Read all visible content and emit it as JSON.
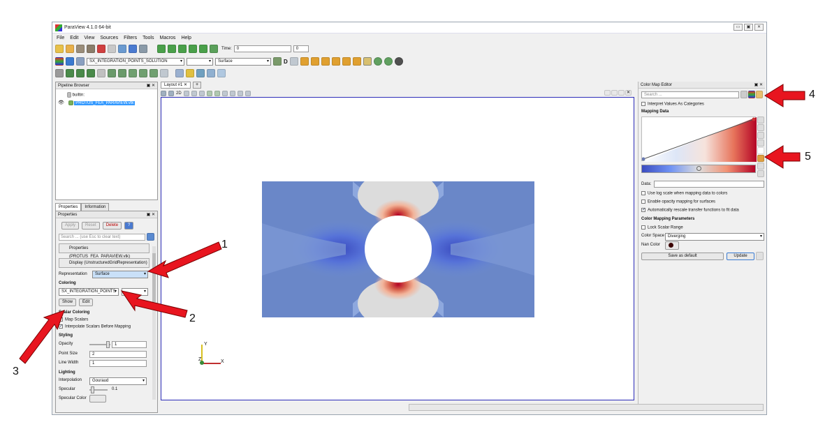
{
  "window": {
    "title": "ParaView 4.1.0 64-bit",
    "controls": [
      "▭",
      "▣",
      "✕"
    ]
  },
  "menu": [
    "File",
    "Edit",
    "View",
    "Sources",
    "Filters",
    "Tools",
    "Macros",
    "Help"
  ],
  "toolbar": {
    "time_label": "Time:",
    "time_value": "0",
    "time_index": "0",
    "array_select": "SX_INTEGRATION_POINTS_SOLUTION",
    "component_select": "",
    "representation_select": "Surface",
    "d_label": "D"
  },
  "pipeline_browser": {
    "title": "Pipeline Browser",
    "items": [
      "builtin:",
      "PROTUS_FEA_PARAVIEW.vtk"
    ]
  },
  "properties_panel": {
    "tabs": [
      "Properties",
      "Information"
    ],
    "title": "Properties",
    "apply": "Apply",
    "reset": "Reset",
    "delete": "Delete",
    "help": "?",
    "search_placeholder": "Search ... (use Esc to clear text)",
    "properties_row": "Properties (PROTUS_FEA_PARAVIEW.vtk)",
    "display_row": "Display (UnstructuredGridRepresentation)",
    "representation_label": "Representation",
    "representation_value": "Surface",
    "coloring_label": "Coloring",
    "coloring_value": "SX_INTEGRATION_POINTS",
    "show_button": "Show",
    "edit_button": "Edit",
    "scalar_coloring": "Scalar Coloring",
    "map_scalars": "Map Scalars",
    "interpolate_scalars": "Interpolate Scalars Before Mapping",
    "styling": "Styling",
    "opacity_label": "Opacity",
    "opacity_value": "1",
    "point_size_label": "Point Size",
    "point_size_value": "2",
    "line_width_label": "Line Width",
    "line_width_value": "1",
    "lighting": "Lighting",
    "interpolation_label": "Interpolation",
    "interpolation_value": "Gouraud",
    "specular_label": "Specular",
    "specular_value": "0.1",
    "specular_color_label": "Specular Color"
  },
  "view": {
    "tab": "Layout #1",
    "tab_close": "✕",
    "add_tab": "+",
    "mode_2d": "2D",
    "axis_y": "Y",
    "axis_z": "Z",
    "axis_x": "X"
  },
  "color_map_editor": {
    "title": "Color Map Editor",
    "search_placeholder": "Search ...",
    "interpret_categories": "Interpret Values As Categories",
    "mapping_data": "Mapping Data",
    "data_label": "Data:",
    "log_scale": "Use log scale when mapping data to colors",
    "opacity_mapping": "Enable opacity mapping for surfaces",
    "auto_rescale": "Automatically rescale transfer functions to fit data",
    "params_title": "Color Mapping Parameters",
    "lock_range": "Lock Scalar Range",
    "color_space_label": "Color Space",
    "color_space_value": "Diverging",
    "nan_color_label": "Nan Color",
    "save_default": "Save as default",
    "update": "Update",
    "accent": "#c4122a"
  },
  "annotations": [
    "1",
    "2",
    "3",
    "4",
    "5"
  ]
}
